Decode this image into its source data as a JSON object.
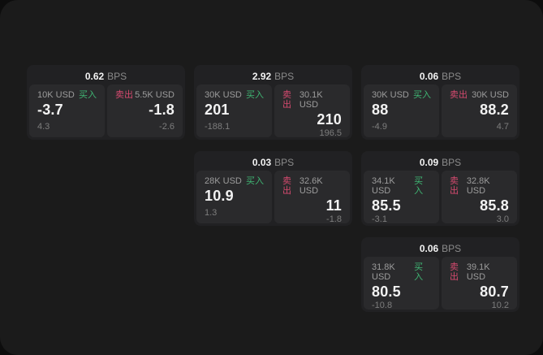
{
  "screen": {
    "bps_suffix": "BPS"
  },
  "labels": {
    "buy": "买入",
    "sell": "卖出"
  },
  "colors": {
    "buy_green": "#3fb573",
    "sell_red": "#d64a6f",
    "page_bg": "#1b1b1b",
    "card_bg": "#212123",
    "tile_bg": "#2a2a2c"
  },
  "cards": [
    {
      "bps": "0.62",
      "row": 1,
      "col": 1,
      "buy": {
        "amount": "10K USD",
        "value": "-3.7",
        "sub": "4.3"
      },
      "sell": {
        "amount": "5.5K USD",
        "value": "-1.8",
        "sub": "-2.6"
      }
    },
    {
      "bps": "2.92",
      "row": 1,
      "col": 2,
      "buy": {
        "amount": "30K USD",
        "value": "201",
        "sub": "-188.1"
      },
      "sell": {
        "amount": "30.1K USD",
        "value": "210",
        "sub": "196.5"
      }
    },
    {
      "bps": "0.06",
      "row": 1,
      "col": 3,
      "buy": {
        "amount": "30K USD",
        "value": "88",
        "sub": "-4.9"
      },
      "sell": {
        "amount": "30K USD",
        "value": "88.2",
        "sub": "4.7"
      }
    },
    {
      "bps": "0.03",
      "row": 2,
      "col": 2,
      "buy": {
        "amount": "28K USD",
        "value": "10.9",
        "sub": "1.3"
      },
      "sell": {
        "amount": "32.6K USD",
        "value": "11",
        "sub": "-1.8"
      }
    },
    {
      "bps": "0.09",
      "row": 2,
      "col": 3,
      "buy": {
        "amount": "34.1K USD",
        "value": "85.5",
        "sub": "-3.1"
      },
      "sell": {
        "amount": "32.8K USD",
        "value": "85.8",
        "sub": "3.0"
      }
    },
    {
      "bps": "0.06",
      "row": 3,
      "col": 3,
      "buy": {
        "amount": "31.8K USD",
        "value": "80.5",
        "sub": "-10.8"
      },
      "sell": {
        "amount": "39.1K USD",
        "value": "80.7",
        "sub": "10.2"
      }
    }
  ]
}
